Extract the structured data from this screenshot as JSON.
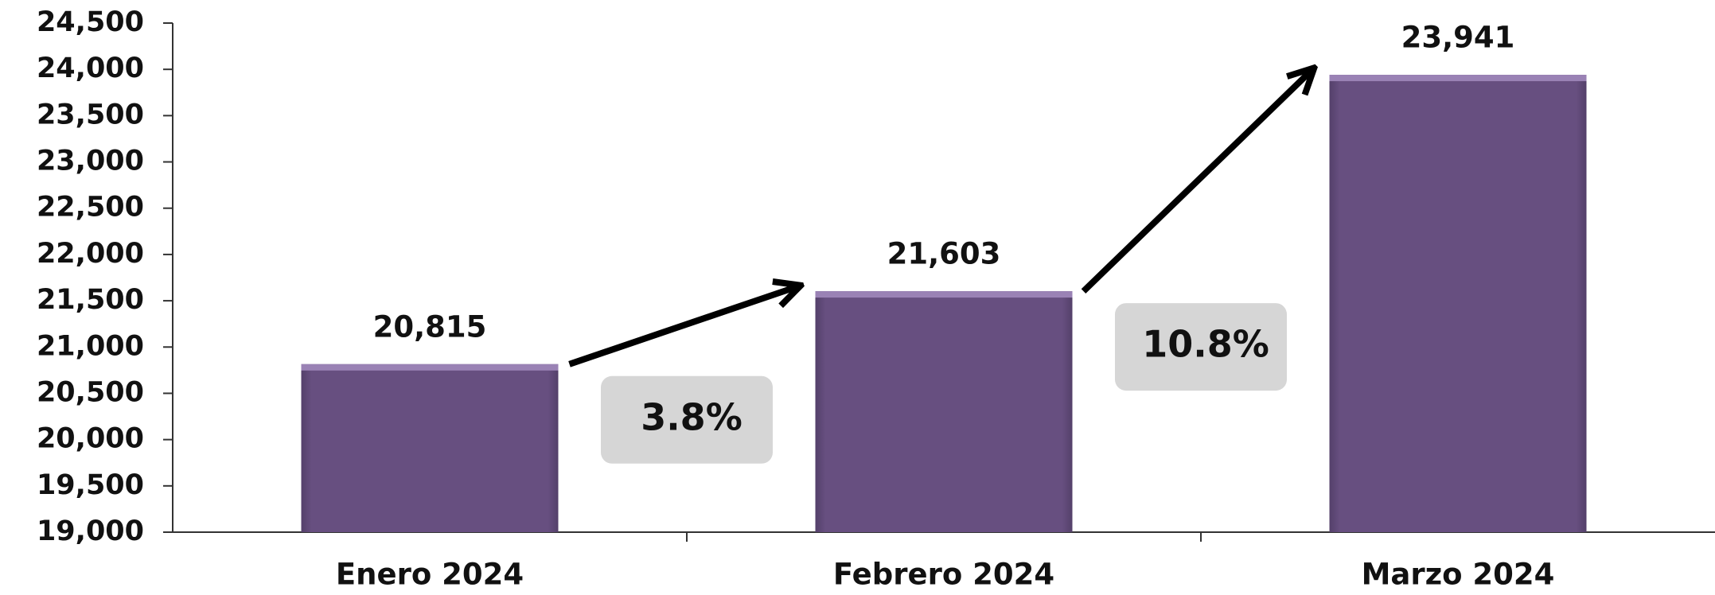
{
  "chart_data": {
    "type": "bar",
    "categories": [
      "Enero 2024",
      "Febrero 2024",
      "Marzo 2024"
    ],
    "values": [
      20815,
      21603,
      23941
    ],
    "value_labels": [
      "20,815",
      "21,603",
      "23,941"
    ],
    "color": "#674f80",
    "ylim": [
      19000,
      24500
    ],
    "yticks": [
      {
        "value": 19000,
        "label": "19,000"
      },
      {
        "value": 19500,
        "label": "19,500"
      },
      {
        "value": 20000,
        "label": "20,000"
      },
      {
        "value": 20500,
        "label": "20,500"
      },
      {
        "value": 21000,
        "label": "21,000"
      },
      {
        "value": 21500,
        "label": "21,500"
      },
      {
        "value": 22000,
        "label": "22,000"
      },
      {
        "value": 22500,
        "label": "22,500"
      },
      {
        "value": 23000,
        "label": "23,000"
      },
      {
        "value": 23500,
        "label": "23,500"
      },
      {
        "value": 24000,
        "label": "24,000"
      },
      {
        "value": 24500,
        "label": "24,500"
      }
    ],
    "annotations": [
      "3.8%",
      "10.8%"
    ]
  }
}
